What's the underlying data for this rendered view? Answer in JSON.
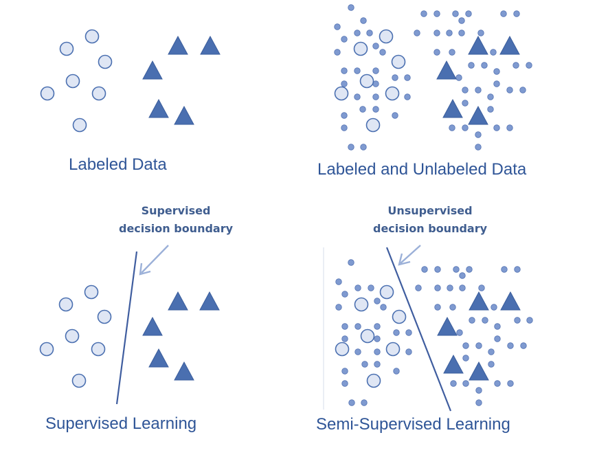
{
  "panels": [
    {
      "id": "labeled-data",
      "caption": "Labeled Data"
    },
    {
      "id": "labeled-and-unlabeled-data",
      "caption": "Labeled and Unlabeled Data"
    },
    {
      "id": "supervised-learning",
      "caption": "Supervised Learning",
      "boundary_note": [
        "Supervised",
        "decision boundary"
      ]
    },
    {
      "id": "semi-supervised-learning",
      "caption": "Semi-Supervised Learning",
      "boundary_note": [
        "Unsupervised",
        "decision boundary"
      ]
    }
  ],
  "colors": {
    "circle_fill": "#dfe6f4",
    "circle_stroke": "#4a6fb0",
    "triangle_fill": "#4a6fb0",
    "triangle_stroke": "#3a5d9c",
    "unlabeled_dot": "#7f9ad0",
    "unlabeled_dot_stroke": "#5473b3",
    "boundary_line": "#3f5d9f",
    "arrow": "#9bb0d8",
    "caption_text": "#2f5597",
    "note_text": "#3f5d8f"
  },
  "icons": {
    "labeled_class_a": "circle-icon",
    "labeled_class_b": "triangle-icon",
    "unlabeled": "small-dot-icon"
  }
}
